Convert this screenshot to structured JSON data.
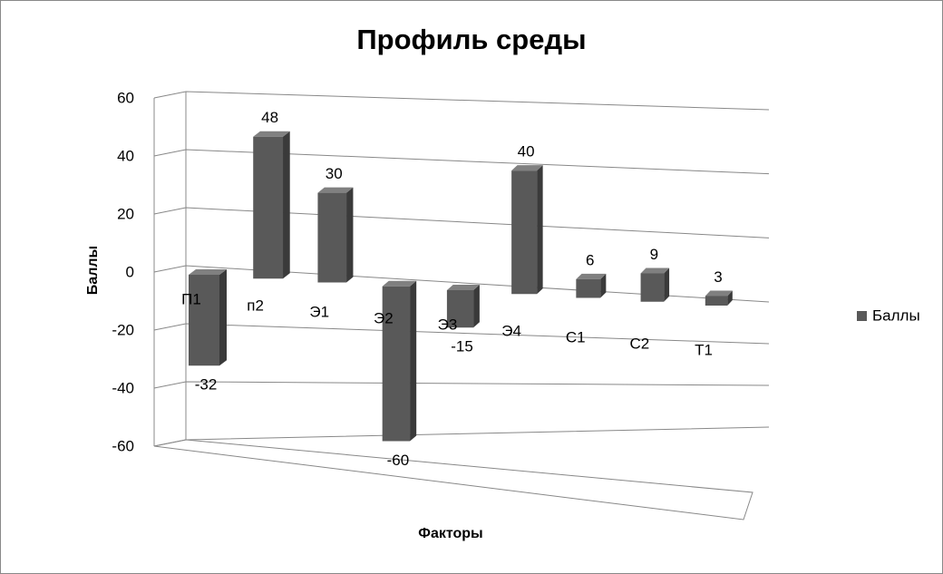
{
  "chart_data": {
    "type": "bar3d",
    "title": "Профиль среды",
    "x_label": "Факторы",
    "y_label": "Баллы",
    "categories": [
      "П1",
      "п2",
      "Э1",
      "Э2",
      "Э3",
      "Э4",
      "С1",
      "С2",
      "Т1"
    ],
    "series": [
      {
        "name": "Баллы",
        "color": "#595959",
        "values": [
          -32,
          48,
          30,
          -60,
          -15,
          40,
          6,
          9,
          3
        ]
      }
    ],
    "ylim": [
      -60,
      60
    ],
    "yticks": [
      -60,
      -40,
      -20,
      0,
      20,
      40,
      60
    ],
    "grid": true,
    "legend": "right"
  }
}
